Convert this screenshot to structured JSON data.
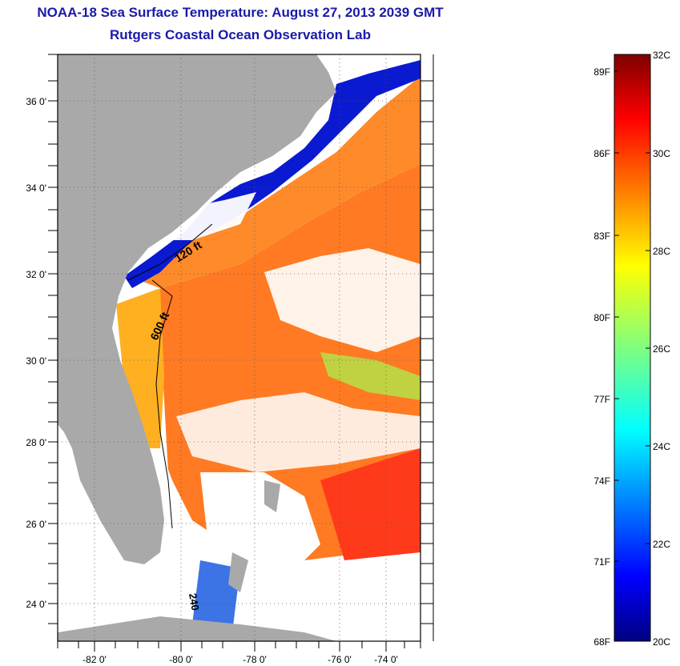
{
  "title": "NOAA-18 Sea Surface Temperature:  August 27, 2013 2039 GMT",
  "subtitle": "Rutgers Coastal Ocean Observation Lab",
  "map": {
    "lat_labels": [
      "36 0'",
      "34 0'",
      "32 0'",
      "30 0'",
      "28 0'",
      "26 0'",
      "24 0'"
    ],
    "lon_labels": [
      "-82 0'",
      "-80 0'",
      "-78 0'",
      "-76 0'",
      "-74 0'"
    ],
    "contour_labels": [
      "120 ft",
      "600 ft",
      "240"
    ],
    "land_color": "#a9a9a9",
    "background_color": "#ffffff"
  },
  "colorbar": {
    "fahrenheit_labels": [
      "89F",
      "86F",
      "83F",
      "80F",
      "77F",
      "74F",
      "71F",
      "68F"
    ],
    "celsius_labels": [
      "32C",
      "30C",
      "28C",
      "26C",
      "24C",
      "22C",
      "20C"
    ],
    "colormap": "jet"
  }
}
